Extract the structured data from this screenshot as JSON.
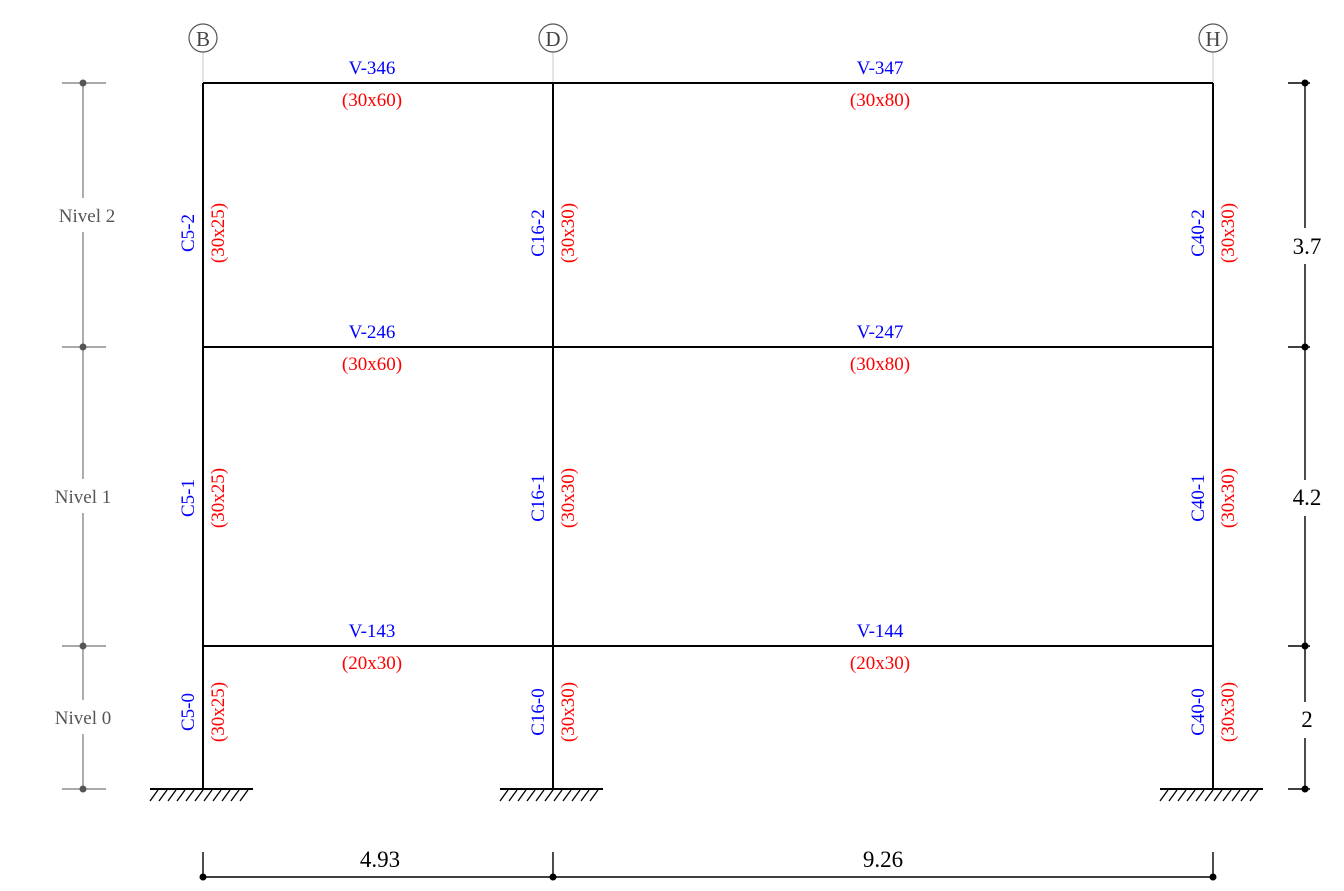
{
  "axes": [
    {
      "label": "B"
    },
    {
      "label": "D"
    },
    {
      "label": "H"
    }
  ],
  "levels": [
    {
      "label": "Nivel 2"
    },
    {
      "label": "Nivel 1"
    },
    {
      "label": "Nivel 0"
    }
  ],
  "beams": [
    {
      "id": "V-346",
      "section": "(30x60)"
    },
    {
      "id": "V-347",
      "section": "(30x80)"
    },
    {
      "id": "V-246",
      "section": "(30x60)"
    },
    {
      "id": "V-247",
      "section": "(30x80)"
    },
    {
      "id": "V-143",
      "section": "(20x30)"
    },
    {
      "id": "V-144",
      "section": "(20x30)"
    }
  ],
  "columns": [
    {
      "id": "C5-2",
      "section": "(30x25)"
    },
    {
      "id": "C16-2",
      "section": "(30x30)"
    },
    {
      "id": "C40-2",
      "section": "(30x30)"
    },
    {
      "id": "C5-1",
      "section": "(30x25)"
    },
    {
      "id": "C16-1",
      "section": "(30x30)"
    },
    {
      "id": "C40-1",
      "section": "(30x30)"
    },
    {
      "id": "C5-0",
      "section": "(30x25)"
    },
    {
      "id": "C16-0",
      "section": "(30x30)"
    },
    {
      "id": "C40-0",
      "section": "(30x30)"
    }
  ],
  "spans": {
    "horizontal": [
      "4.93",
      "9.26"
    ],
    "vertical": [
      "3.7",
      "4.2",
      "2"
    ]
  },
  "colors": {
    "id_text": "#0000ff",
    "section_text": "#ff0000",
    "frame": "#000000",
    "level_text": "#555555"
  }
}
